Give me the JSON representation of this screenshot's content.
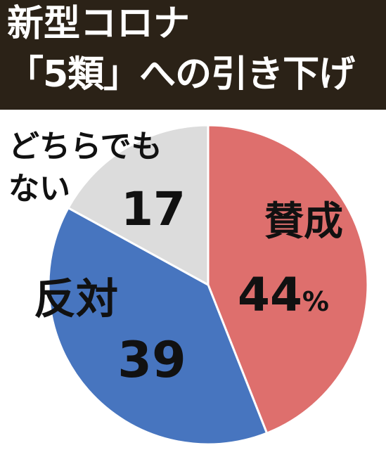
{
  "title": {
    "line1": "新型コロナ",
    "line2": "「5類」への引き下げ"
  },
  "chart_data": {
    "type": "pie",
    "title": "新型コロナ 「5類」への引き下げ",
    "slices": [
      {
        "label": "賛成",
        "value": 44,
        "value_label": "44",
        "unit": "%",
        "color": "#de6f6d"
      },
      {
        "label": "反対",
        "value": 39,
        "value_label": "39",
        "unit": "",
        "color": "#4775bf"
      },
      {
        "label": "どちらでもない",
        "label_lines": [
          "どちらでも",
          "ない"
        ],
        "value": 17,
        "value_label": "17",
        "unit": "",
        "color": "#dcdcdc"
      }
    ],
    "start": "12 o'clock",
    "direction": "clockwise"
  }
}
